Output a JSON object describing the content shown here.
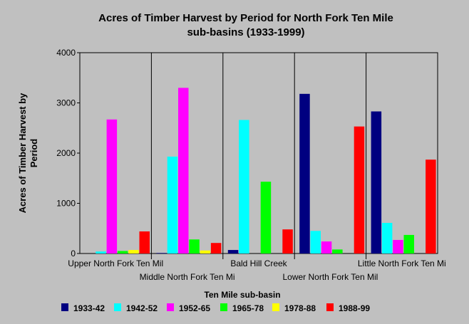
{
  "chart_data": {
    "type": "bar",
    "title_line1": "Acres of Timber Harvest by Period for North Fork Ten Mile",
    "title_line2": "sub-basins (1933-1999)",
    "ylabel_line1": "Acres of Timber Harvest by",
    "ylabel_line2": "Period",
    "xlabel": "Ten Mile sub-basin",
    "ylim": [
      0,
      4000
    ],
    "yticks": [
      0,
      1000,
      2000,
      3000,
      4000
    ],
    "grid": false,
    "legend_position": "bottom",
    "categories": [
      "Upper North Fork Ten Mil",
      "Middle North Fork Ten Mi",
      "Bald Hill Creek",
      "Lower North Fork Ten Mil",
      "Little North Fork Ten Mi"
    ],
    "series": [
      {
        "name": "1933-42",
        "color": "#000080",
        "values": [
          0,
          10,
          70,
          3180,
          2830
        ]
      },
      {
        "name": "1942-52",
        "color": "#00ffff",
        "values": [
          40,
          1930,
          2660,
          450,
          610
        ]
      },
      {
        "name": "1952-65",
        "color": "#ff00ff",
        "values": [
          2670,
          3300,
          0,
          240,
          270
        ]
      },
      {
        "name": "1965-78",
        "color": "#00ff00",
        "values": [
          50,
          280,
          1430,
          80,
          370
        ]
      },
      {
        "name": "1978-88",
        "color": "#ffff00",
        "values": [
          70,
          60,
          0,
          0,
          0
        ]
      },
      {
        "name": "1988-99",
        "color": "#ff0000",
        "values": [
          440,
          210,
          480,
          2530,
          1870
        ]
      }
    ]
  }
}
